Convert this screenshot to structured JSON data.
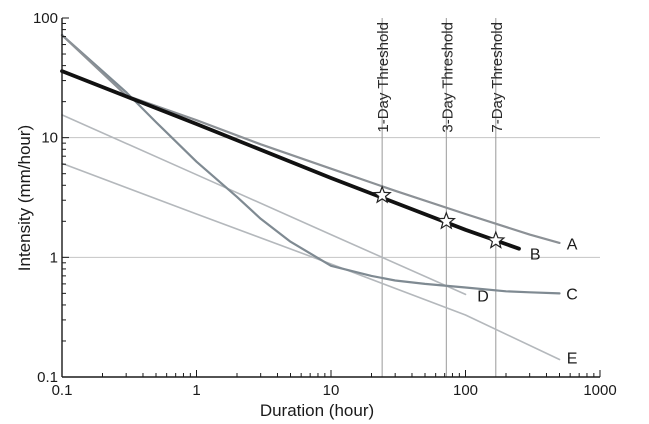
{
  "chart_data": {
    "type": "line",
    "title": "",
    "xlabel": "Duration (hour)",
    "ylabel": "Intensity (mm/hour)",
    "xscale": "log",
    "yscale": "log",
    "xlim": [
      0.1,
      1000
    ],
    "ylim": [
      0.1,
      100
    ],
    "xticks": [
      {
        "value": 0.1,
        "label": "0.1"
      },
      {
        "value": 1,
        "label": "1"
      },
      {
        "value": 10,
        "label": "10"
      },
      {
        "value": 100,
        "label": "100"
      },
      {
        "value": 1000,
        "label": "1000"
      }
    ],
    "yticks": [
      {
        "value": 0.1,
        "label": "0.1"
      },
      {
        "value": 1,
        "label": "1"
      },
      {
        "value": 10,
        "label": "10"
      },
      {
        "value": 100,
        "label": "100"
      }
    ],
    "grid": true,
    "series": [
      {
        "name": "A",
        "color": "#8c9196",
        "width": 2.2,
        "x": [
          0.1,
          0.3,
          1,
          3,
          10,
          30,
          100,
          300,
          500
        ],
        "y": [
          72,
          22.5,
          14,
          8.8,
          5.5,
          3.6,
          2.3,
          1.55,
          1.32
        ]
      },
      {
        "name": "B",
        "color": "#111111",
        "width": 3.8,
        "x": [
          0.1,
          1,
          10,
          100,
          250
        ],
        "y": [
          36,
          13,
          4.6,
          1.7,
          1.18
        ]
      },
      {
        "name": "C",
        "color": "#7f8a92",
        "width": 2.2,
        "x": [
          0.1,
          0.2,
          0.3,
          0.5,
          1,
          2,
          3,
          5,
          10,
          20,
          30,
          50,
          100,
          200,
          300,
          500
        ],
        "y": [
          72,
          36,
          24,
          13.5,
          6.3,
          3.2,
          2.1,
          1.35,
          0.85,
          0.7,
          0.64,
          0.6,
          0.56,
          0.52,
          0.51,
          0.5
        ]
      },
      {
        "name": "D",
        "color": "#b4b8bc",
        "width": 1.6,
        "x": [
          0.1,
          1,
          10,
          100
        ],
        "y": [
          15.5,
          4.9,
          1.55,
          0.49
        ]
      },
      {
        "name": "E",
        "color": "#b4b8bc",
        "width": 1.6,
        "x": [
          0.1,
          1,
          10,
          100,
          500
        ],
        "y": [
          6.1,
          2.3,
          0.88,
          0.33,
          0.14
        ]
      }
    ],
    "curve_labels": [
      {
        "text": "A",
        "x": 620,
        "y": 1.3
      },
      {
        "text": "B",
        "x": 330,
        "y": 1.08
      },
      {
        "text": "C",
        "x": 620,
        "y": 0.5
      },
      {
        "text": "D",
        "x": 135,
        "y": 0.48
      },
      {
        "text": "E",
        "x": 620,
        "y": 0.145
      }
    ],
    "thresholds": [
      {
        "label": "1-Day Threshold",
        "x": 24,
        "y": 3.3
      },
      {
        "label": "3-Day Threshold",
        "x": 72,
        "y": 2.0
      },
      {
        "label": "7-Day Threshold",
        "x": 168,
        "y": 1.38
      }
    ],
    "colors": {
      "axis": "#1a1a1a",
      "grid": "#c4c4c4",
      "threshold_line": "#9a9a9a",
      "star_fill": "#ffffff",
      "star_stroke": "#222222"
    }
  }
}
